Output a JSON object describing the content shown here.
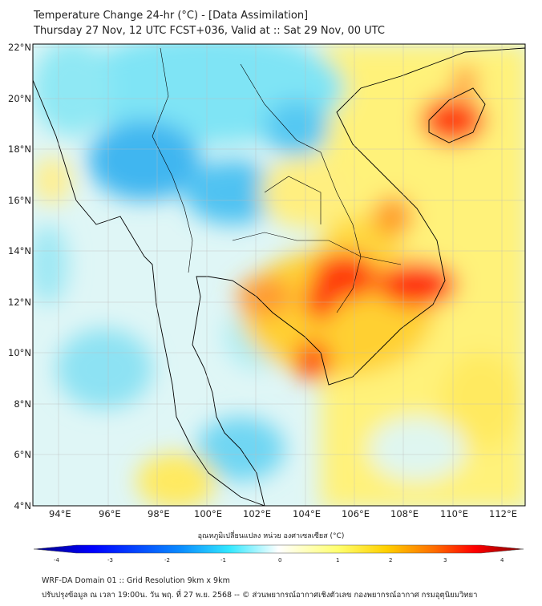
{
  "header": {
    "title": "Temperature Change 24-hr (°C) - [Data Assimilation]",
    "subtitle": "Thursday 27 Nov, 12 UTC FCST+036, Valid at :: Sat 29 Nov, 00 UTC"
  },
  "map": {
    "lat_labels": [
      "22°N",
      "20°N",
      "18°N",
      "16°N",
      "14°N",
      "12°N",
      "10°N",
      "8°N",
      "6°N",
      "4°N"
    ],
    "lon_labels": [
      "94°E",
      "96°E",
      "98°E",
      "100°E",
      "102°E",
      "104°E",
      "106°E",
      "108°E",
      "110°E",
      "112°E"
    ],
    "lon_range": [
      93,
      112.6
    ],
    "lat_range": [
      4,
      22.1
    ]
  },
  "colorbar": {
    "label": "อุณหภูมิเปลี่ยนแปลง หน่วย องศาเซลเซียส (°C)",
    "ticks": [
      "-4",
      "-3",
      "-2",
      "-1",
      "0",
      "1",
      "2",
      "3",
      "4"
    ],
    "range": [
      -4,
      4
    ],
    "colors": [
      "#00007f",
      "#0000ff",
      "#0080ff",
      "#33ffff",
      "#ffffff",
      "#ffff66",
      "#ffcc00",
      "#ff6600",
      "#ff0000",
      "#7f0000"
    ]
  },
  "footer": {
    "line1": "WRF-DA Domain 01 :: Grid Resolution 9km x 9km",
    "line2": "ปรับปรุงข้อมูล ณ เวลา 19:00น. วัน พฤ. ที่ 27 พ.ย. 2568 -- © ส่วนพยากรณ์อากาศเชิงตัวเลข กองพยากรณ์อากาศ กรมอุตุนิยมวิทยา"
  }
}
